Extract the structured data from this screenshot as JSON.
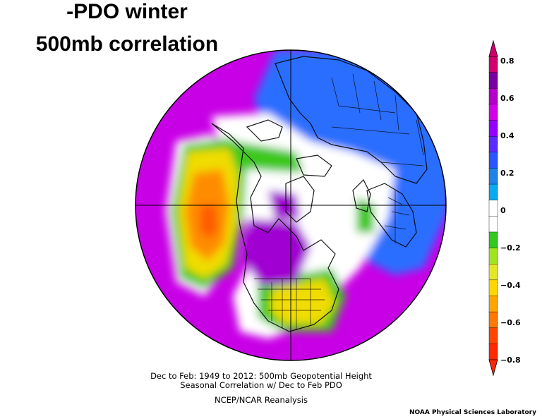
{
  "title": {
    "line1": "-PDO winter",
    "line2": "500mb correlation"
  },
  "caption": {
    "line1": "Dec to Feb: 1949 to 2012: 500mb Geopotential Height",
    "line2": "Seasonal Correlation w/ Dec to Feb PDO",
    "line3": "NCEP/NCAR Reanalysis"
  },
  "credit": "NOAA Physical Sciences Laboratory",
  "colorbar": {
    "labels": [
      "0.8",
      "0.6",
      "0.4",
      "0.2",
      "0",
      "−0.2",
      "−0.4",
      "−0.6",
      "−0.8"
    ],
    "colors": [
      "#d2006e",
      "#7800a0",
      "#b400c8",
      "#d200e6",
      "#9600ff",
      "#5a2aff",
      "#2a55ff",
      "#1e82e6",
      "#0aaaf0",
      "#ffffff",
      "#ffffff",
      "#32c81e",
      "#a0e61e",
      "#e6e628",
      "#ffd700",
      "#ffa500",
      "#ff7800",
      "#ff4600",
      "#ff2800"
    ]
  },
  "map": {
    "projection": "north-polar-stereographic",
    "field_colors": {
      "strong_positive": "#a000d2",
      "positive": "#c800e6",
      "moderate_positive": "#5a28ff",
      "weak_positive": "#2a6eff",
      "light_positive": "#1e96f0",
      "neutral": "#ffffff",
      "weak_negative": "#3cc81e",
      "moderate_negative": "#b4e61e",
      "negative": "#f0dc00",
      "strong_negative": "#ff8c00",
      "extreme_negative": "#ff5a00"
    }
  }
}
